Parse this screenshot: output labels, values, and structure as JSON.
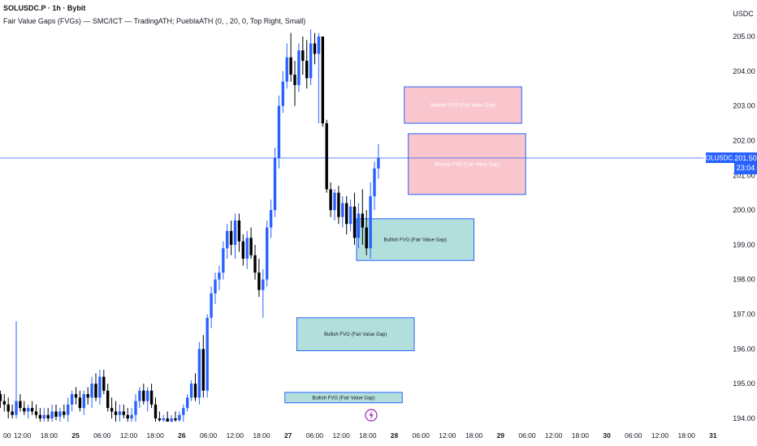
{
  "header": {
    "symbol": "SOLUSDC.P · 1h · Bybit",
    "indicator": "Fair Value Gaps (FVGs) — SMC/ICT — TradingATH; PueblaATH (0, , 20, 0, Top Right, Small)"
  },
  "price_axis": {
    "currency": "USDC",
    "ticks": [
      "205.00",
      "204.00",
      "203.00",
      "202.00",
      "201.00",
      "200.00",
      "199.00",
      "198.00",
      "197.00",
      "196.00",
      "195.00",
      "194.00"
    ]
  },
  "time_axis": {
    "ticks": [
      "00",
      "12:00",
      "18:00",
      "25",
      "06:00",
      "12:00",
      "18:00",
      "26",
      "06:00",
      "12:00",
      "18:00",
      "27",
      "06:00",
      "12:00",
      "18:00",
      "28",
      "06:00",
      "12:00",
      "18:00",
      "29",
      "06:00",
      "12:00",
      "18:00",
      "30",
      "06:00",
      "12:00",
      "18:00",
      "31"
    ]
  },
  "last_price": {
    "symbol": "SOLUSDC.P",
    "price": "201.50",
    "countdown": "23:04"
  },
  "colors": {
    "bull": "#2962ff",
    "bear": "#000000",
    "bull_fvg_fill": "#b2dfdb",
    "bear_fvg_fill": "#f8c6cc",
    "fvg_border": "#2962ff",
    "price_line": "#2962ff"
  },
  "icons": [
    "lightning-icon"
  ],
  "chart_data": {
    "type": "candlestick",
    "title": "",
    "ylim": [
      193.7,
      205.4
    ],
    "x_range": [
      -0.5,
      115
    ],
    "candles": [
      {
        "o": 194.7,
        "h": 194.8,
        "l": 194.3,
        "c": 194.5
      },
      {
        "o": 194.5,
        "h": 194.7,
        "l": 194.2,
        "c": 194.4
      },
      {
        "o": 194.4,
        "h": 194.6,
        "l": 194.0,
        "c": 194.2
      },
      {
        "o": 194.2,
        "h": 194.4,
        "l": 194.0,
        "c": 194.1
      },
      {
        "o": 194.1,
        "h": 196.8,
        "l": 194.0,
        "c": 194.5
      },
      {
        "o": 194.5,
        "h": 194.7,
        "l": 194.2,
        "c": 194.3
      },
      {
        "o": 194.3,
        "h": 194.5,
        "l": 194.1,
        "c": 194.2
      },
      {
        "o": 194.2,
        "h": 194.4,
        "l": 194.0,
        "c": 194.3
      },
      {
        "o": 194.3,
        "h": 194.5,
        "l": 194.1,
        "c": 194.2
      },
      {
        "o": 194.2,
        "h": 194.4,
        "l": 194.0,
        "c": 194.1
      },
      {
        "o": 194.1,
        "h": 194.3,
        "l": 193.9,
        "c": 194.0
      },
      {
        "o": 194.0,
        "h": 194.3,
        "l": 193.8,
        "c": 194.1
      },
      {
        "o": 194.1,
        "h": 194.3,
        "l": 193.9,
        "c": 194.0
      },
      {
        "o": 194.0,
        "h": 194.4,
        "l": 193.8,
        "c": 194.2
      },
      {
        "o": 194.2,
        "h": 194.4,
        "l": 193.95,
        "c": 194.05
      },
      {
        "o": 194.05,
        "h": 194.3,
        "l": 193.85,
        "c": 194.2
      },
      {
        "o": 194.2,
        "h": 194.4,
        "l": 194.0,
        "c": 194.1
      },
      {
        "o": 194.1,
        "h": 194.6,
        "l": 193.9,
        "c": 194.4
      },
      {
        "o": 194.4,
        "h": 194.8,
        "l": 194.2,
        "c": 194.7
      },
      {
        "o": 194.7,
        "h": 194.9,
        "l": 194.4,
        "c": 194.6
      },
      {
        "o": 194.6,
        "h": 194.8,
        "l": 194.2,
        "c": 194.3
      },
      {
        "o": 194.3,
        "h": 194.8,
        "l": 194.1,
        "c": 194.7
      },
      {
        "o": 194.7,
        "h": 194.9,
        "l": 194.4,
        "c": 194.6
      },
      {
        "o": 194.6,
        "h": 195.2,
        "l": 194.3,
        "c": 195.0
      },
      {
        "o": 195.0,
        "h": 195.3,
        "l": 194.5,
        "c": 194.6
      },
      {
        "o": 194.6,
        "h": 195.4,
        "l": 194.4,
        "c": 195.2
      },
      {
        "o": 195.2,
        "h": 195.4,
        "l": 194.7,
        "c": 194.8
      },
      {
        "o": 194.8,
        "h": 195.0,
        "l": 194.2,
        "c": 194.3
      },
      {
        "o": 194.3,
        "h": 194.6,
        "l": 194.0,
        "c": 194.2
      },
      {
        "o": 194.2,
        "h": 194.5,
        "l": 193.9,
        "c": 194.1
      },
      {
        "o": 194.1,
        "h": 194.4,
        "l": 193.9,
        "c": 194.2
      },
      {
        "o": 194.2,
        "h": 194.4,
        "l": 194.0,
        "c": 194.1
      },
      {
        "o": 194.1,
        "h": 194.3,
        "l": 193.9,
        "c": 194.0
      },
      {
        "o": 194.0,
        "h": 194.3,
        "l": 193.8,
        "c": 194.1
      },
      {
        "o": 194.1,
        "h": 194.7,
        "l": 193.9,
        "c": 194.5
      },
      {
        "o": 194.5,
        "h": 194.9,
        "l": 194.3,
        "c": 194.8
      },
      {
        "o": 194.8,
        "h": 195.0,
        "l": 194.4,
        "c": 194.5
      },
      {
        "o": 194.5,
        "h": 194.9,
        "l": 194.2,
        "c": 194.8
      },
      {
        "o": 194.8,
        "h": 195.0,
        "l": 194.3,
        "c": 194.4
      },
      {
        "o": 194.4,
        "h": 194.6,
        "l": 193.9,
        "c": 194.0
      },
      {
        "o": 194.0,
        "h": 194.2,
        "l": 193.85,
        "c": 193.95
      },
      {
        "o": 193.95,
        "h": 194.1,
        "l": 193.8,
        "c": 194.0
      },
      {
        "o": 194.0,
        "h": 194.2,
        "l": 193.8,
        "c": 193.9
      },
      {
        "o": 193.9,
        "h": 194.1,
        "l": 193.75,
        "c": 194.0
      },
      {
        "o": 194.0,
        "h": 194.2,
        "l": 193.85,
        "c": 193.95
      },
      {
        "o": 193.95,
        "h": 194.2,
        "l": 193.8,
        "c": 194.1
      },
      {
        "o": 194.1,
        "h": 194.4,
        "l": 193.9,
        "c": 194.3
      },
      {
        "o": 194.3,
        "h": 194.7,
        "l": 194.2,
        "c": 194.6
      },
      {
        "o": 194.6,
        "h": 195.1,
        "l": 194.5,
        "c": 195.0
      },
      {
        "o": 195.0,
        "h": 195.3,
        "l": 194.5,
        "c": 194.6
      },
      {
        "o": 194.6,
        "h": 196.2,
        "l": 194.4,
        "c": 196.0
      },
      {
        "o": 196.0,
        "h": 196.4,
        "l": 194.6,
        "c": 194.8
      },
      {
        "o": 194.8,
        "h": 197.0,
        "l": 194.6,
        "c": 196.9
      },
      {
        "o": 196.9,
        "h": 197.8,
        "l": 196.6,
        "c": 197.6
      },
      {
        "o": 197.6,
        "h": 198.2,
        "l": 197.3,
        "c": 198.0
      },
      {
        "o": 198.0,
        "h": 198.4,
        "l": 197.7,
        "c": 198.2
      },
      {
        "o": 198.2,
        "h": 199.1,
        "l": 198.0,
        "c": 198.9
      },
      {
        "o": 198.9,
        "h": 199.6,
        "l": 198.6,
        "c": 199.4
      },
      {
        "o": 199.4,
        "h": 199.7,
        "l": 198.7,
        "c": 199.0
      },
      {
        "o": 199.0,
        "h": 199.9,
        "l": 198.6,
        "c": 199.7
      },
      {
        "o": 199.7,
        "h": 199.9,
        "l": 198.8,
        "c": 199.1
      },
      {
        "o": 199.1,
        "h": 199.3,
        "l": 198.4,
        "c": 198.6
      },
      {
        "o": 198.6,
        "h": 199.4,
        "l": 198.3,
        "c": 199.2
      },
      {
        "o": 199.2,
        "h": 199.5,
        "l": 198.6,
        "c": 198.7
      },
      {
        "o": 198.7,
        "h": 199.0,
        "l": 198.0,
        "c": 198.2
      },
      {
        "o": 198.2,
        "h": 198.6,
        "l": 197.5,
        "c": 197.7
      },
      {
        "o": 197.7,
        "h": 198.3,
        "l": 196.9,
        "c": 198.0
      },
      {
        "o": 198.0,
        "h": 199.7,
        "l": 197.8,
        "c": 199.5
      },
      {
        "o": 199.5,
        "h": 200.3,
        "l": 199.2,
        "c": 200.0
      },
      {
        "o": 200.0,
        "h": 201.8,
        "l": 199.8,
        "c": 201.5
      },
      {
        "o": 201.5,
        "h": 203.3,
        "l": 201.2,
        "c": 203.0
      },
      {
        "o": 203.0,
        "h": 204.0,
        "l": 202.8,
        "c": 203.7
      },
      {
        "o": 203.7,
        "h": 204.8,
        "l": 203.5,
        "c": 204.4
      },
      {
        "o": 204.4,
        "h": 205.1,
        "l": 203.7,
        "c": 203.9
      },
      {
        "o": 203.9,
        "h": 204.3,
        "l": 203.0,
        "c": 203.6
      },
      {
        "o": 203.6,
        "h": 204.8,
        "l": 203.4,
        "c": 204.6
      },
      {
        "o": 204.6,
        "h": 205.0,
        "l": 203.9,
        "c": 204.3
      },
      {
        "o": 204.3,
        "h": 204.9,
        "l": 203.5,
        "c": 203.8
      },
      {
        "o": 203.8,
        "h": 205.2,
        "l": 203.6,
        "c": 204.8
      },
      {
        "o": 204.8,
        "h": 205.1,
        "l": 204.2,
        "c": 204.5
      },
      {
        "o": 204.5,
        "h": 205.1,
        "l": 202.5,
        "c": 205.0
      },
      {
        "o": 205.0,
        "h": 205.0,
        "l": 202.4,
        "c": 202.5
      },
      {
        "o": 202.5,
        "h": 202.6,
        "l": 200.5,
        "c": 200.6
      },
      {
        "o": 200.6,
        "h": 200.8,
        "l": 199.8,
        "c": 200.0
      },
      {
        "o": 200.0,
        "h": 200.6,
        "l": 199.7,
        "c": 200.5
      },
      {
        "o": 200.5,
        "h": 200.7,
        "l": 199.6,
        "c": 199.8
      },
      {
        "o": 199.8,
        "h": 200.4,
        "l": 199.5,
        "c": 200.2
      },
      {
        "o": 200.2,
        "h": 200.4,
        "l": 199.3,
        "c": 199.6
      },
      {
        "o": 199.6,
        "h": 200.3,
        "l": 199.4,
        "c": 200.1
      },
      {
        "o": 200.1,
        "h": 200.5,
        "l": 199.0,
        "c": 199.2
      },
      {
        "o": 199.2,
        "h": 200.2,
        "l": 198.9,
        "c": 199.9
      },
      {
        "o": 199.9,
        "h": 200.6,
        "l": 199.0,
        "c": 199.5
      },
      {
        "o": 199.5,
        "h": 200.0,
        "l": 198.7,
        "c": 198.9
      },
      {
        "o": 198.9,
        "h": 200.8,
        "l": 198.6,
        "c": 200.4
      },
      {
        "o": 200.4,
        "h": 201.4,
        "l": 200.0,
        "c": 201.2
      },
      {
        "o": 201.2,
        "h": 201.9,
        "l": 200.9,
        "c": 201.5
      }
    ],
    "fvgs": [
      {
        "kind": "bullish",
        "label": "Bullish FVG (Fair Value Gap)",
        "x0": 71.5,
        "x1": 101,
        "y_low": 194.45,
        "y_high": 194.75
      },
      {
        "kind": "bullish",
        "label": "Bullish FVG (Fair Value Gap)",
        "x0": 74.5,
        "x1": 104,
        "y_low": 195.95,
        "y_high": 196.9
      },
      {
        "kind": "bullish",
        "label": "Bullish FVG (Fair Value Gap)",
        "x0": 89.5,
        "x1": 119,
        "y_low": 198.55,
        "y_high": 199.75
      },
      {
        "kind": "bearish",
        "label": "Bearish FVG (Fair Value Gap)",
        "x0": 101.5,
        "x1": 131,
        "y_low": 202.5,
        "y_high": 203.55
      },
      {
        "kind": "bearish",
        "label": "Bearish FVG (Fair Value Gap)",
        "x0": 102.5,
        "x1": 132,
        "y_low": 200.45,
        "y_high": 202.2
      }
    ],
    "last_price": 201.5,
    "grid": false,
    "legend": "none"
  }
}
